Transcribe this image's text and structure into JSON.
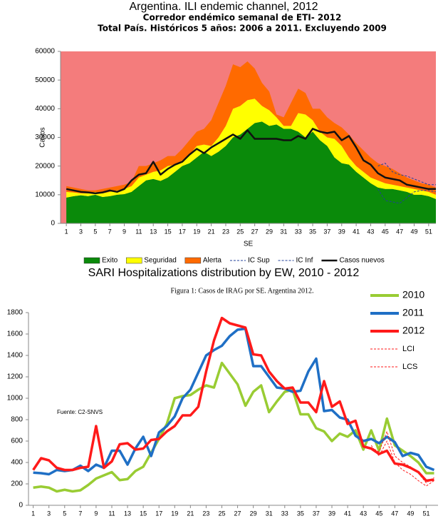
{
  "chart_data": [
    {
      "type": "area",
      "title": "Argentina. ILI endemic channel, 2012",
      "subtitle": [
        "Corredor endémico semanal de ETI- 2012",
        "Total País. Históricos 5 años: 2006  a 2011. Excluyendo 2009"
      ],
      "xlabel": "SE",
      "ylabel": "Casos",
      "plot_background": "#f47c7c",
      "legend": "bottom",
      "x": [
        1,
        2,
        3,
        4,
        5,
        6,
        7,
        8,
        9,
        10,
        11,
        12,
        13,
        14,
        15,
        16,
        17,
        18,
        19,
        20,
        21,
        22,
        23,
        24,
        25,
        26,
        27,
        28,
        29,
        30,
        31,
        32,
        33,
        34,
        35,
        36,
        37,
        38,
        39,
        40,
        41,
        42,
        43,
        44,
        45,
        46,
        47,
        48,
        49,
        50,
        51,
        52
      ],
      "xlim": [
        0.2,
        52
      ],
      "xticks": [
        1,
        3,
        5,
        7,
        9,
        11,
        13,
        15,
        17,
        19,
        21,
        23,
        25,
        27,
        29,
        31,
        33,
        35,
        37,
        39,
        41,
        43,
        45,
        47,
        49,
        51
      ],
      "ylim": [
        0,
        60000
      ],
      "yticks": [
        0,
        10000,
        20000,
        30000,
        40000,
        50000,
        60000
      ],
      "series": [
        {
          "name": "Exito",
          "kind": "area",
          "color": "#0a8a0a",
          "values": [
            9000,
            9500,
            9800,
            9500,
            10000,
            9200,
            9500,
            10000,
            10200,
            11000,
            13000,
            15000,
            15500,
            14800,
            16000,
            18000,
            20000,
            21000,
            23000,
            25000,
            23500,
            25000,
            27000,
            30000,
            31000,
            33000,
            35000,
            35500,
            34000,
            34500,
            33000,
            33000,
            32000,
            30000,
            32000,
            29000,
            27000,
            23000,
            21000,
            20500,
            18000,
            16000,
            14000,
            12500,
            12000,
            12000,
            11500,
            11000,
            10000,
            10000,
            9500,
            8500
          ]
        },
        {
          "name": "Seguridad",
          "kind": "area",
          "color": "#ffff00",
          "values": [
            2000,
            1300,
            700,
            1000,
            1000,
            1300,
            1500,
            1500,
            1800,
            2000,
            3000,
            2000,
            2500,
            3700,
            4000,
            2500,
            2000,
            3000,
            4000,
            2500,
            3500,
            5000,
            7000,
            10000,
            10000,
            10000,
            8500,
            5500,
            5500,
            2500,
            1000,
            1000,
            6500,
            8000,
            4000,
            3000,
            3000,
            6500,
            6000,
            2500,
            2000,
            2000,
            2000,
            2500,
            2000,
            1500,
            1500,
            1500,
            2000,
            1500,
            1500,
            1500
          ]
        },
        {
          "name": "Alerta",
          "kind": "area",
          "color": "#ff6a00",
          "values": [
            2000,
            1700,
            1500,
            1000,
            500,
            1500,
            1500,
            1500,
            1500,
            1500,
            4000,
            3000,
            3000,
            3500,
            3500,
            3000,
            4000,
            5000,
            5000,
            5500,
            9000,
            12000,
            14000,
            15500,
            13500,
            13500,
            10500,
            8000,
            6500,
            1000,
            3000,
            8000,
            8500,
            7500,
            4000,
            8000,
            7000,
            5500,
            6500,
            8000,
            8000,
            7500,
            7000,
            6000,
            6000,
            5500,
            4500,
            3500,
            3000,
            2500,
            2500,
            2500
          ]
        },
        {
          "name": "IC Sup",
          "kind": "line",
          "dash": true,
          "color": "#1f3f9a",
          "values": [
            null,
            null,
            null,
            null,
            null,
            null,
            null,
            null,
            null,
            null,
            null,
            null,
            null,
            null,
            null,
            null,
            null,
            null,
            null,
            null,
            null,
            null,
            null,
            null,
            null,
            null,
            null,
            null,
            null,
            null,
            null,
            null,
            null,
            null,
            null,
            null,
            null,
            null,
            null,
            null,
            null,
            null,
            null,
            20000,
            21000,
            18000,
            17000,
            16500,
            15500,
            14500,
            13500,
            13500
          ]
        },
        {
          "name": "IC Inf",
          "kind": "line",
          "dash": true,
          "color": "#1f3f9a",
          "values": [
            null,
            null,
            null,
            null,
            null,
            null,
            null,
            null,
            null,
            null,
            null,
            null,
            null,
            null,
            null,
            null,
            null,
            null,
            null,
            null,
            null,
            null,
            null,
            null,
            null,
            null,
            null,
            null,
            null,
            null,
            null,
            null,
            null,
            null,
            null,
            null,
            null,
            null,
            null,
            null,
            null,
            null,
            null,
            12000,
            8000,
            7500,
            7000,
            9000,
            11000,
            11500,
            11500,
            11000
          ]
        },
        {
          "name": "Casos nuevos",
          "kind": "line",
          "color": "#111111",
          "values": [
            12000,
            11500,
            11000,
            10800,
            10500,
            10800,
            11500,
            11000,
            12000,
            15000,
            17000,
            17500,
            21500,
            17000,
            19000,
            20500,
            21500,
            24000,
            26000,
            24500,
            26500,
            28000,
            29500,
            31000,
            29500,
            32500,
            29500,
            29500,
            29500,
            29500,
            29000,
            29000,
            30500,
            29500,
            33000,
            32000,
            31500,
            32000,
            29000,
            30500,
            26500,
            22000,
            20500,
            17500,
            16000,
            15500,
            15000,
            13500,
            13000,
            12500,
            12000,
            12000
          ]
        }
      ]
    },
    {
      "type": "line",
      "title": "SARI Hospitalizations distribution by EW, 2010 - 2012",
      "subtitle": [
        "Figura 1: Casos de IRAG por SE. Argentina 2012."
      ],
      "annotation": "Fuente: C2-SNVS",
      "legend": "upper right",
      "x": [
        1,
        2,
        3,
        4,
        5,
        6,
        7,
        8,
        9,
        10,
        11,
        12,
        13,
        14,
        15,
        16,
        17,
        18,
        19,
        20,
        21,
        22,
        23,
        24,
        25,
        26,
        27,
        28,
        29,
        30,
        31,
        32,
        33,
        34,
        35,
        36,
        37,
        38,
        39,
        40,
        41,
        42,
        43,
        44,
        45,
        46,
        47,
        48,
        49,
        50,
        51,
        52
      ],
      "xlim": [
        0.4,
        52.5
      ],
      "xticks": [
        1,
        3,
        5,
        7,
        9,
        11,
        13,
        15,
        17,
        19,
        21,
        23,
        25,
        27,
        29,
        31,
        33,
        35,
        37,
        39,
        41,
        43,
        45,
        47,
        49,
        51
      ],
      "ylim": [
        0,
        1800
      ],
      "yticks": [
        0,
        200,
        400,
        600,
        800,
        1000,
        1200,
        1400,
        1600,
        1800
      ],
      "series": [
        {
          "name": "2010",
          "kind": "line",
          "color": "#99cc33",
          "values": [
            165,
            175,
            165,
            130,
            145,
            130,
            140,
            190,
            250,
            280,
            310,
            235,
            245,
            320,
            360,
            490,
            620,
            760,
            1000,
            1020,
            1030,
            1080,
            1120,
            1100,
            1330,
            1230,
            1130,
            930,
            1060,
            1120,
            870,
            970,
            1060,
            1080,
            850,
            850,
            720,
            690,
            600,
            670,
            640,
            700,
            520,
            700,
            510,
            810,
            560,
            510,
            460,
            400,
            300,
            300
          ]
        },
        {
          "name": "2011",
          "kind": "line",
          "color": "#1f6fc5",
          "values": [
            305,
            300,
            290,
            330,
            320,
            330,
            370,
            320,
            380,
            350,
            510,
            510,
            380,
            530,
            640,
            460,
            680,
            740,
            830,
            1000,
            1080,
            1240,
            1400,
            1450,
            1490,
            1580,
            1640,
            1650,
            1300,
            1300,
            1200,
            1100,
            1090,
            1060,
            1070,
            1250,
            1370,
            880,
            890,
            820,
            800,
            650,
            600,
            620,
            580,
            640,
            590,
            460,
            490,
            470,
            360,
            330
          ]
        },
        {
          "name": "2012",
          "kind": "line",
          "color": "#ff1a1a",
          "values": [
            330,
            440,
            420,
            350,
            330,
            330,
            350,
            360,
            740,
            350,
            410,
            570,
            580,
            520,
            530,
            610,
            620,
            690,
            740,
            840,
            840,
            920,
            1250,
            1540,
            1750,
            1700,
            1680,
            1660,
            1410,
            1400,
            1250,
            1160,
            1090,
            1100,
            960,
            960,
            870,
            1160,
            920,
            970,
            760,
            790,
            550,
            530,
            480,
            510,
            390,
            380,
            350,
            310,
            230,
            240
          ]
        },
        {
          "name": "LCI",
          "kind": "line",
          "dash": true,
          "thin": true,
          "color": "#ff1a1a",
          "values": [
            null,
            null,
            null,
            null,
            null,
            null,
            null,
            null,
            null,
            null,
            null,
            null,
            null,
            null,
            null,
            null,
            null,
            null,
            null,
            null,
            null,
            null,
            null,
            null,
            null,
            null,
            null,
            null,
            null,
            null,
            null,
            null,
            null,
            null,
            null,
            null,
            null,
            null,
            null,
            null,
            null,
            null,
            null,
            560,
            460,
            600,
            400,
            330,
            290,
            230,
            180,
            230
          ]
        },
        {
          "name": "LCS",
          "kind": "line",
          "dash": true,
          "thin": true,
          "color": "#ff1a1a",
          "values": [
            null,
            null,
            null,
            null,
            null,
            null,
            null,
            null,
            null,
            null,
            null,
            null,
            null,
            null,
            null,
            null,
            null,
            null,
            null,
            null,
            null,
            null,
            null,
            null,
            null,
            null,
            null,
            null,
            null,
            null,
            null,
            null,
            null,
            null,
            null,
            null,
            null,
            null,
            null,
            null,
            null,
            null,
            null,
            540,
            500,
            690,
            460,
            400,
            360,
            300,
            210,
            260
          ]
        }
      ]
    }
  ]
}
